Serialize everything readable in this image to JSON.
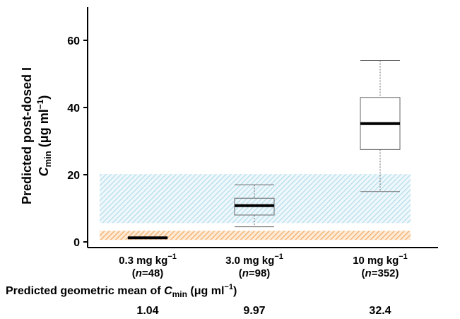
{
  "chart_data": {
    "type": "box",
    "ylabel": {
      "line1": "Predicted post-dosed I",
      "line2_main": "C",
      "line2_sub": "min",
      "line2_unit": " (μg ml",
      "line2_sup": "−1",
      "line2_close": ")"
    },
    "ylim": [
      0,
      60
    ],
    "yticks": [
      "0",
      "20",
      "40",
      "60"
    ],
    "categories": [
      {
        "dose": "0.3 mg kg",
        "dose_sup": "−1",
        "n_prefix": "(",
        "n_italic": "n",
        "n_rest": "=48)"
      },
      {
        "dose": "3.0 mg kg",
        "dose_sup": "−1",
        "n_prefix": "(",
        "n_italic": "n",
        "n_rest": "=98)"
      },
      {
        "dose": "10 mg kg",
        "dose_sup": "−1",
        "n_prefix": "(",
        "n_italic": "n",
        "n_rest": "=352)"
      }
    ],
    "boxes": [
      {
        "whisker_low": 1.0,
        "q1": 1.0,
        "median": 1.2,
        "q3": 1.4,
        "whisker_high": 1.4
      },
      {
        "whisker_low": 4.5,
        "q1": 8.0,
        "median": 10.8,
        "q3": 13.0,
        "whisker_high": 17.0
      },
      {
        "whisker_low": 15.0,
        "q1": 27.5,
        "median": 35.2,
        "q3": 43.0,
        "whisker_high": 54.0
      }
    ],
    "bands": [
      {
        "from": 5.6,
        "to": 20.2,
        "color": "#a9d8e8",
        "style": "hatched"
      },
      {
        "from": 0.6,
        "to": 3.3,
        "color": "#f0a050",
        "style": "hatched"
      }
    ],
    "geomean_label": {
      "prefix": "Predicted geometric mean of ",
      "main": "C",
      "sub": "min",
      "unit": " (μg ml",
      "sup": "−1",
      "close": ")"
    },
    "geomean_values": [
      "1.04",
      "9.97",
      "32.4"
    ]
  }
}
